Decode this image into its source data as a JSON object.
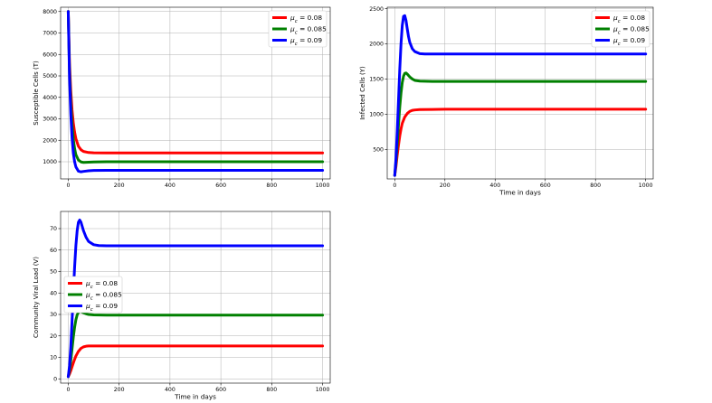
{
  "chart_data": [
    {
      "type": "line",
      "id": "susceptible",
      "title": "",
      "xlabel": "",
      "ylabel": "Susceptible Cells (T)",
      "xlim": [
        -30,
        1030
      ],
      "ylim": [
        200,
        8200
      ],
      "xticks": [
        "0",
        "200",
        "400",
        "600",
        "800",
        "1000"
      ],
      "yticks": [
        "1000",
        "2000",
        "3000",
        "4000",
        "5000",
        "6000",
        "7000",
        "8000"
      ],
      "grid": true,
      "legend_position": "upper right",
      "series": [
        {
          "name": "μc = 0.08",
          "color": "#ff0000",
          "x": [
            0,
            5,
            10,
            15,
            20,
            25,
            30,
            40,
            50,
            60,
            80,
            100,
            150,
            200,
            300,
            400,
            600,
            800,
            1000
          ],
          "y": [
            8000,
            5600,
            4300,
            3400,
            2800,
            2380,
            2080,
            1720,
            1560,
            1480,
            1430,
            1415,
            1410,
            1410,
            1410,
            1410,
            1410,
            1410,
            1410
          ]
        },
        {
          "name": "μc = 0.085",
          "color": "#008000",
          "x": [
            0,
            5,
            10,
            15,
            20,
            25,
            30,
            40,
            50,
            60,
            80,
            100,
            150,
            200,
            300,
            400,
            600,
            800,
            1000
          ],
          "y": [
            8000,
            5200,
            3700,
            2700,
            2050,
            1620,
            1330,
            1080,
            990,
            970,
            980,
            990,
            1000,
            1000,
            1000,
            1000,
            1000,
            1000,
            1000
          ]
        },
        {
          "name": "μc = 0.09",
          "color": "#0000ff",
          "x": [
            0,
            5,
            10,
            15,
            20,
            25,
            30,
            40,
            50,
            60,
            80,
            100,
            150,
            200,
            300,
            400,
            600,
            800,
            1000
          ],
          "y": [
            8000,
            4900,
            3200,
            2100,
            1400,
            1000,
            760,
            560,
            530,
            550,
            580,
            595,
            600,
            600,
            600,
            600,
            600,
            600,
            600
          ]
        }
      ]
    },
    {
      "type": "line",
      "id": "infected",
      "title": "",
      "xlabel": "Time in days",
      "ylabel": "Infected Cells (Y)",
      "xlim": [
        -30,
        1030
      ],
      "ylim": [
        80,
        2520
      ],
      "xticks": [
        "0",
        "200",
        "400",
        "600",
        "800",
        "1000"
      ],
      "yticks": [
        "500",
        "1000",
        "1500",
        "2000",
        "2500"
      ],
      "grid": true,
      "legend_position": "upper right",
      "series": [
        {
          "name": "μc = 0.08",
          "color": "#ff0000",
          "x": [
            0,
            5,
            10,
            15,
            20,
            25,
            30,
            40,
            50,
            60,
            70,
            80,
            100,
            150,
            200,
            300,
            400,
            600,
            800,
            1000
          ],
          "y": [
            130,
            260,
            420,
            560,
            690,
            790,
            870,
            960,
            1010,
            1040,
            1055,
            1060,
            1065,
            1068,
            1070,
            1070,
            1070,
            1070,
            1070,
            1070
          ]
        },
        {
          "name": "μc = 0.085",
          "color": "#008000",
          "x": [
            0,
            5,
            10,
            15,
            20,
            25,
            30,
            35,
            40,
            45,
            50,
            60,
            70,
            80,
            100,
            150,
            200,
            300,
            400,
            600,
            800,
            1000
          ],
          "y": [
            130,
            320,
            580,
            850,
            1100,
            1300,
            1450,
            1540,
            1580,
            1585,
            1570,
            1530,
            1500,
            1480,
            1470,
            1465,
            1465,
            1465,
            1465,
            1465,
            1465,
            1465
          ]
        },
        {
          "name": "μc = 0.09",
          "color": "#0000ff",
          "x": [
            0,
            5,
            10,
            15,
            20,
            25,
            30,
            35,
            40,
            45,
            50,
            55,
            60,
            70,
            80,
            100,
            120,
            150,
            200,
            300,
            400,
            600,
            800,
            1000
          ],
          "y": [
            130,
            380,
            760,
            1200,
            1640,
            2000,
            2260,
            2390,
            2400,
            2330,
            2210,
            2100,
            2020,
            1930,
            1890,
            1860,
            1855,
            1855,
            1855,
            1855,
            1855,
            1855,
            1855,
            1855
          ]
        }
      ]
    },
    {
      "type": "line",
      "id": "viral_load",
      "title": "",
      "xlabel": "Time in days",
      "ylabel": "Community Viral Load (V)",
      "xlim": [
        -30,
        1030
      ],
      "ylim": [
        -2,
        78
      ],
      "xticks": [
        "0",
        "200",
        "400",
        "600",
        "800",
        "1000"
      ],
      "yticks": [
        "0",
        "10",
        "20",
        "30",
        "40",
        "50",
        "60",
        "70"
      ],
      "grid": true,
      "legend_position": "center left",
      "series": [
        {
          "name": "μc = 0.08",
          "color": "#ff0000",
          "x": [
            0,
            5,
            10,
            15,
            20,
            25,
            30,
            40,
            50,
            60,
            70,
            80,
            100,
            150,
            200,
            300,
            400,
            600,
            800,
            1000
          ],
          "y": [
            1,
            2.2,
            3.8,
            5.6,
            7.4,
            9.1,
            10.6,
            12.8,
            14.2,
            14.9,
            15.2,
            15.3,
            15.3,
            15.3,
            15.3,
            15.3,
            15.3,
            15.3,
            15.3,
            15.3
          ]
        },
        {
          "name": "μc = 0.085",
          "color": "#008000",
          "x": [
            0,
            5,
            10,
            15,
            20,
            25,
            30,
            35,
            40,
            45,
            50,
            60,
            70,
            80,
            100,
            150,
            200,
            300,
            400,
            600,
            800,
            1000
          ],
          "y": [
            1,
            4,
            8.5,
            14,
            19.5,
            24,
            27.5,
            29.8,
            31,
            31.4,
            31.3,
            30.8,
            30.3,
            30,
            29.8,
            29.7,
            29.7,
            29.7,
            29.7,
            29.7,
            29.7,
            29.7
          ]
        },
        {
          "name": "μc = 0.09",
          "color": "#0000ff",
          "x": [
            0,
            5,
            10,
            15,
            20,
            25,
            30,
            35,
            40,
            45,
            50,
            55,
            60,
            70,
            80,
            100,
            120,
            150,
            200,
            300,
            400,
            600,
            800,
            1000
          ],
          "y": [
            1,
            6,
            15,
            27,
            40,
            52,
            62,
            69,
            73,
            74,
            73,
            71,
            69,
            66,
            64,
            62.5,
            62.1,
            62,
            62,
            62,
            62,
            62,
            62,
            62
          ]
        }
      ]
    }
  ]
}
